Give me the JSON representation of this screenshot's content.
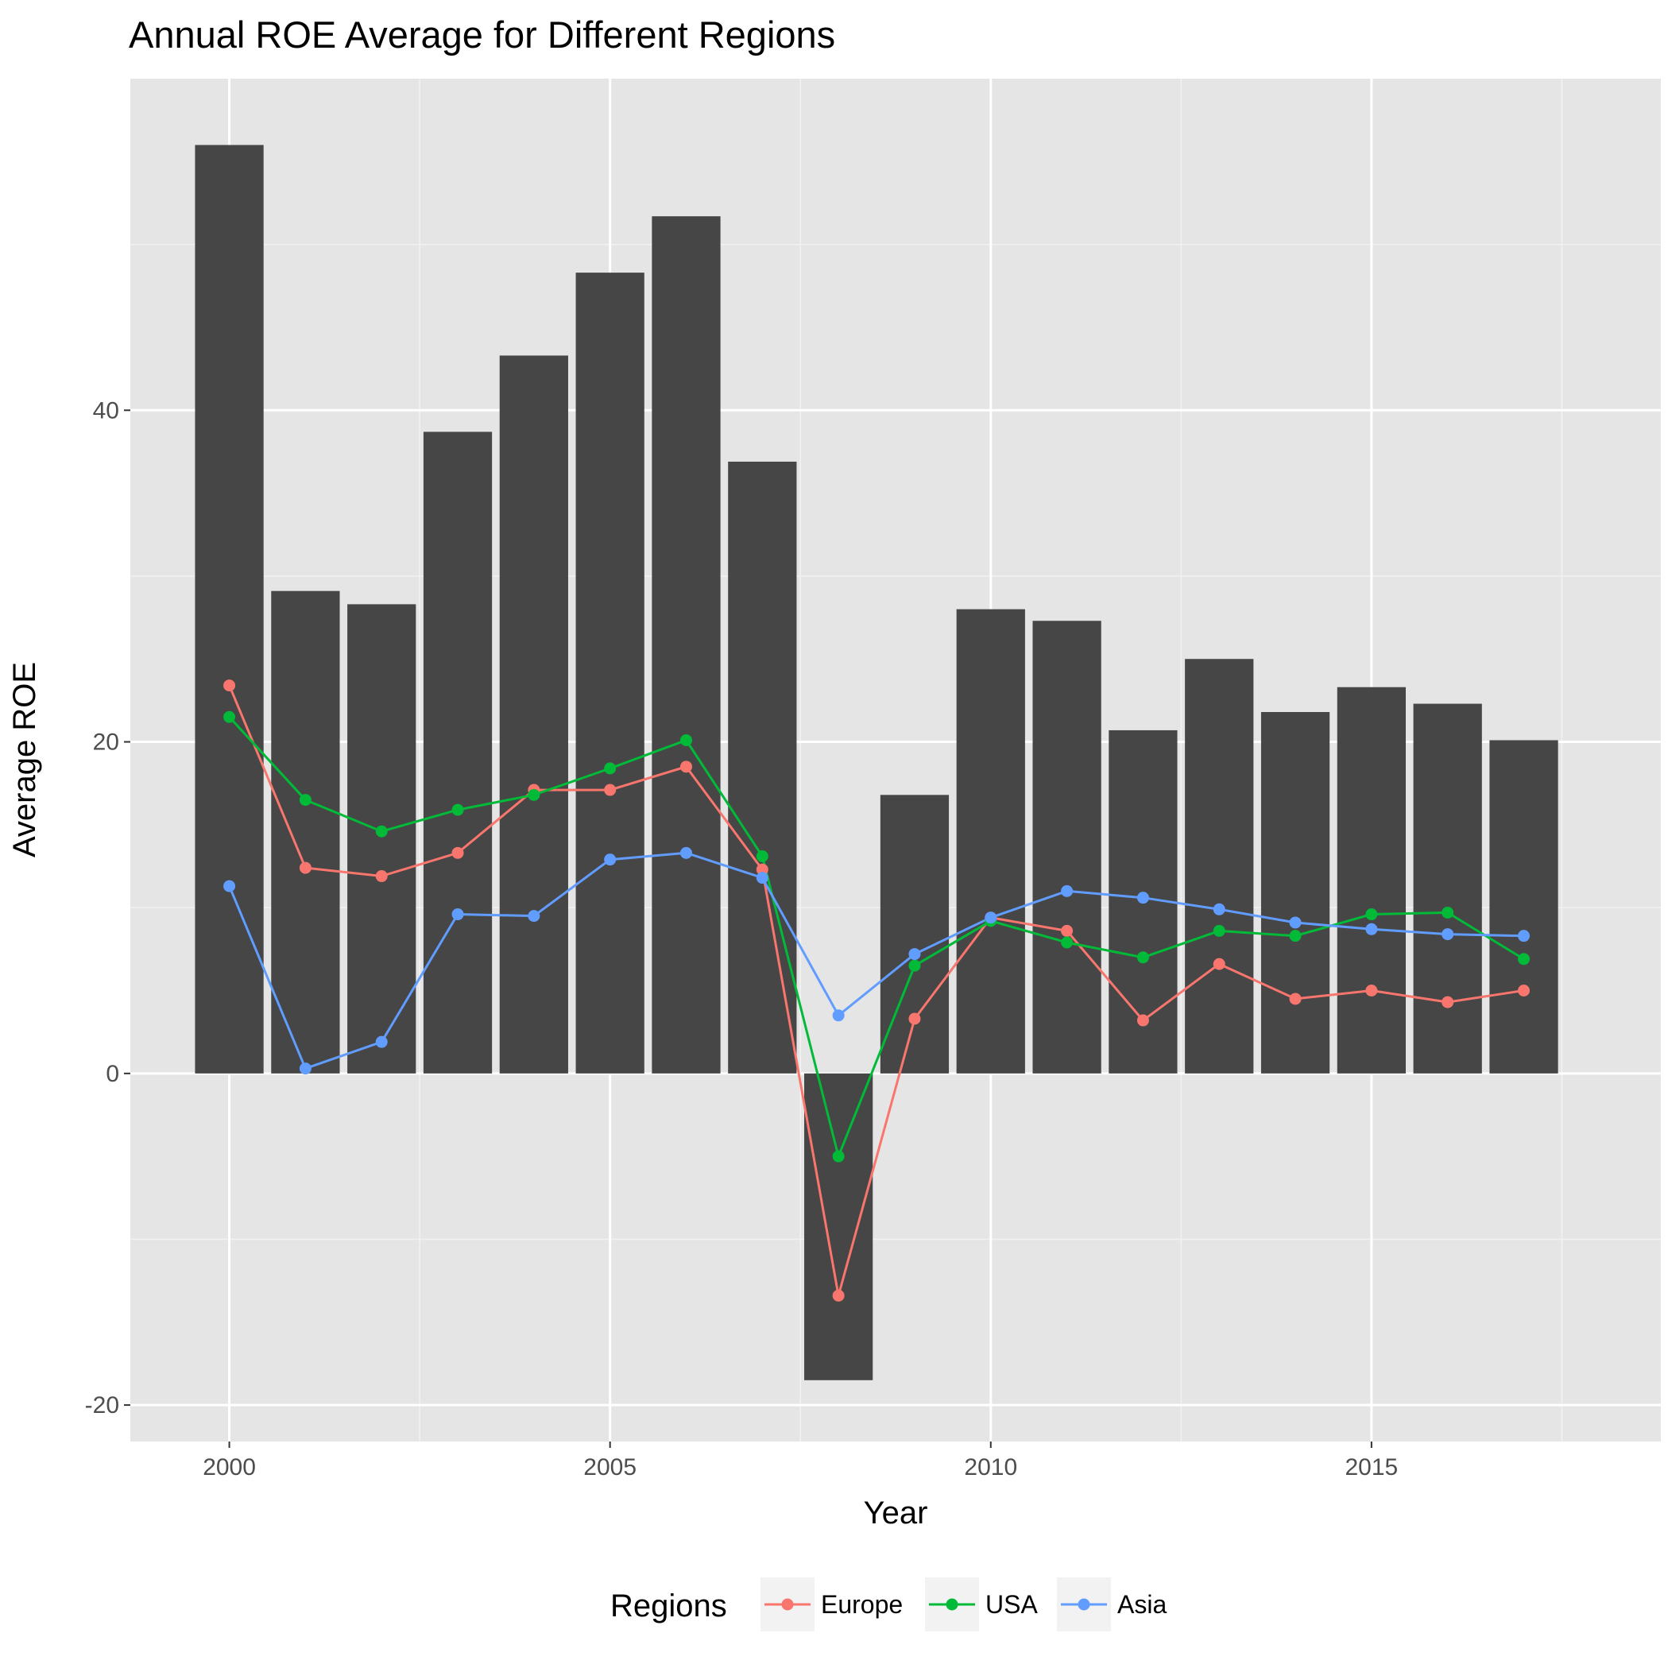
{
  "chart_data": {
    "type": "bar",
    "title": "Annual ROE Average for Different Regions",
    "xlabel": "Year",
    "ylabel": "Average ROE",
    "x_ticks": [
      "2000",
      "2005",
      "2010",
      "2015"
    ],
    "y_ticks": [
      "-20",
      "0",
      "20",
      "40"
    ],
    "xlim": [
      1998.7,
      2018.8
    ],
    "ylim": [
      -22.2,
      60.0
    ],
    "grid": true,
    "legend_title": "Regions",
    "legend_position": "bottom",
    "x": [
      2000,
      2001,
      2002,
      2003,
      2004,
      2005,
      2006,
      2007,
      2008,
      2009,
      2010,
      2011,
      2012,
      2013,
      2014,
      2015,
      2016,
      2017
    ],
    "bars": {
      "values": [
        56.0,
        29.1,
        28.3,
        38.7,
        43.3,
        48.3,
        51.7,
        36.9,
        -18.5,
        16.8,
        28.0,
        27.3,
        20.7,
        25.0,
        21.8,
        23.3,
        22.3,
        20.1
      ],
      "color": "#464646"
    },
    "series": [
      {
        "name": "Europe",
        "color": "#f8766d",
        "values": [
          23.4,
          12.4,
          11.9,
          13.3,
          17.1,
          17.1,
          18.5,
          12.3,
          -13.4,
          3.3,
          9.4,
          8.6,
          3.2,
          6.6,
          4.5,
          5.0,
          4.3,
          5.0
        ]
      },
      {
        "name": "USA",
        "color": "#00ba38",
        "values": [
          21.5,
          16.5,
          14.6,
          15.9,
          16.8,
          18.4,
          20.1,
          13.1,
          -5.0,
          6.5,
          9.2,
          7.9,
          7.0,
          8.6,
          8.3,
          9.6,
          9.7,
          6.9
        ]
      },
      {
        "name": "Asia",
        "color": "#619cff",
        "values": [
          11.3,
          0.3,
          1.9,
          9.6,
          9.5,
          12.9,
          13.3,
          11.8,
          3.5,
          7.2,
          9.4,
          11.0,
          10.6,
          9.9,
          9.1,
          8.7,
          8.4,
          8.3
        ]
      }
    ]
  }
}
